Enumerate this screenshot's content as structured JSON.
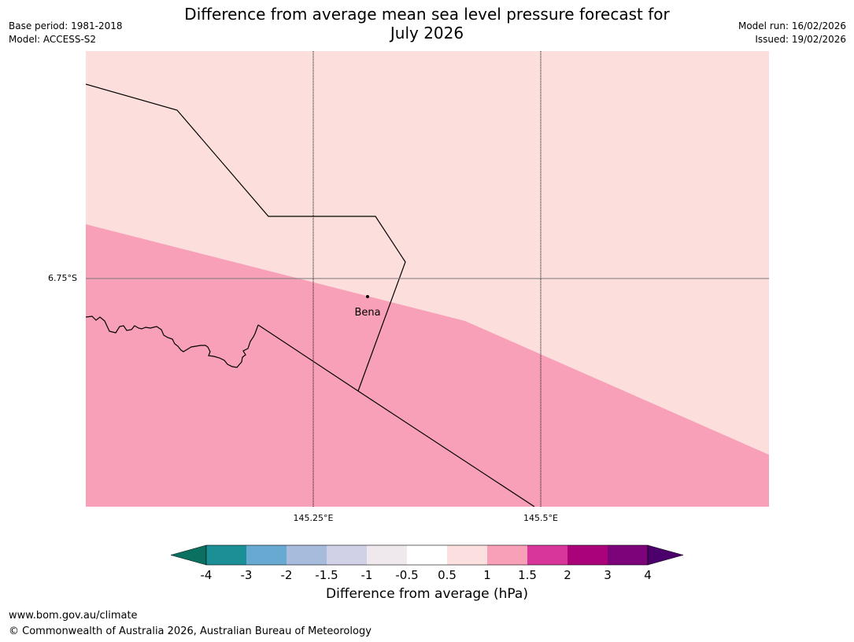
{
  "header": {
    "title_line1": "Difference from average mean sea level pressure forecast for",
    "title_line2": "July 2026",
    "base_period": "Base period: 1981-2018",
    "model": "Model: ACCESS-S2",
    "model_run": "Model run: 16/02/2026",
    "issued": "Issued: 19/02/2026"
  },
  "map": {
    "lat_labels": [
      "6.75°S"
    ],
    "lon_labels": [
      "145.25°E",
      "145.5°E"
    ],
    "place": {
      "name": "Bena"
    },
    "regions": [
      {
        "category": "0.5 to 1",
        "color": "#fcdfdd"
      },
      {
        "category": "1 to 1.5",
        "color": "#f8a0b8"
      }
    ]
  },
  "colorbar": {
    "ticks": [
      "-4",
      "-3",
      "-2",
      "-1.5",
      "-1",
      "-0.5",
      "0.5",
      "1",
      "1.5",
      "2",
      "3",
      "4"
    ],
    "colors": [
      "#0a7060",
      "#1a9096",
      "#68a9d1",
      "#a7bbdc",
      "#d0d0e6",
      "#efe9ee",
      "#ffffff",
      "#fce0df",
      "#f8a0b8",
      "#d9369a",
      "#aa0279",
      "#7d037a",
      "#4c006b"
    ],
    "label": "Difference from average (hPa)"
  },
  "footer": {
    "url": "www.bom.gov.au/climate",
    "copyright": "© Commonwealth of Australia 2026, Australian Bureau of Meteorology"
  }
}
